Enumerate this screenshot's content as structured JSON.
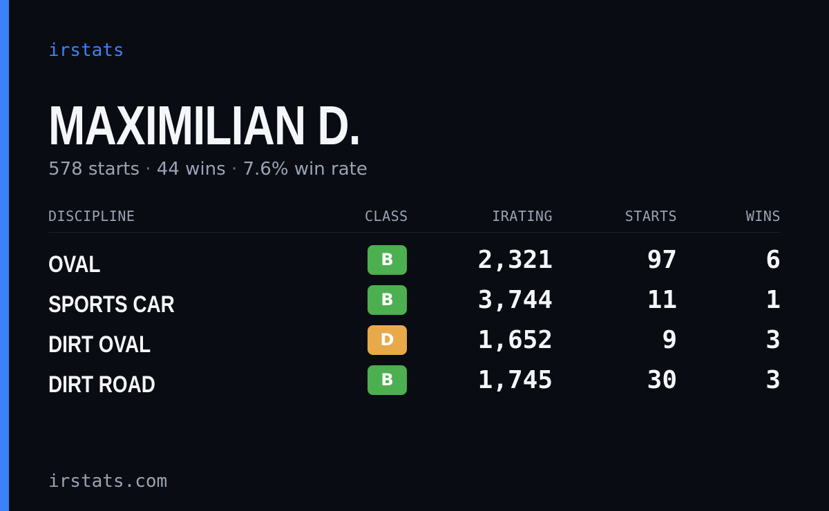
{
  "colors": {
    "accent": "#3b82f6",
    "background": "#090c12",
    "class_B": "#4caf50",
    "class_D": "#e8a94a"
  },
  "brand": "irstats",
  "player": {
    "name": "MAXIMILIAN D.",
    "starts": "578 starts",
    "wins": "44 wins",
    "win_rate": "7.6% win rate",
    "separator": "·"
  },
  "table": {
    "headers": {
      "discipline": "DISCIPLINE",
      "class": "CLASS",
      "irating": "IRATING",
      "starts": "STARTS",
      "wins": "WINS"
    },
    "rows": [
      {
        "discipline": "OVAL",
        "class": "B",
        "irating": "2,321",
        "starts": "97",
        "wins": "6"
      },
      {
        "discipline": "SPORTS CAR",
        "class": "B",
        "irating": "3,744",
        "starts": "11",
        "wins": "1"
      },
      {
        "discipline": "DIRT OVAL",
        "class": "D",
        "irating": "1,652",
        "starts": "9",
        "wins": "3"
      },
      {
        "discipline": "DIRT ROAD",
        "class": "B",
        "irating": "1,745",
        "starts": "30",
        "wins": "3"
      }
    ]
  },
  "footer": {
    "domain": "irstats.com"
  }
}
